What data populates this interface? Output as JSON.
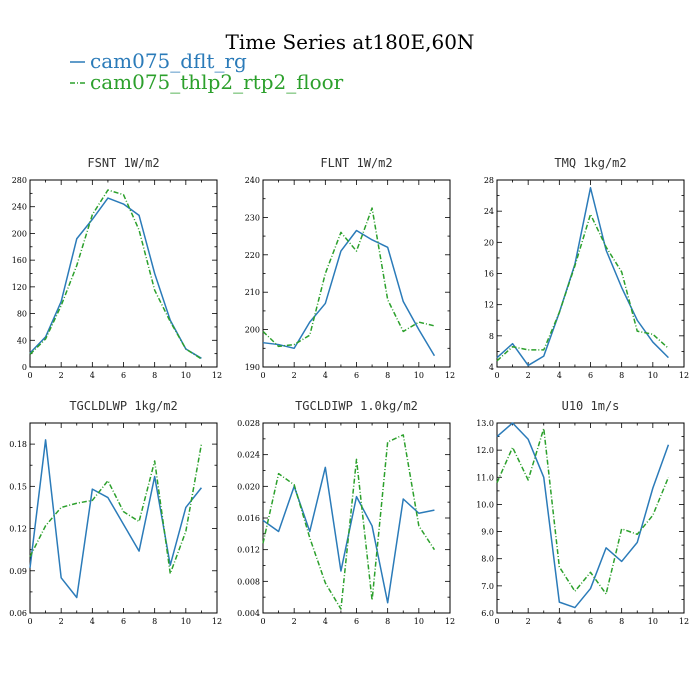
{
  "figure": {
    "title": "Time Series at180E,60N",
    "legend": [
      {
        "label": "cam075_dflt_rg",
        "color": "#2b7bb9",
        "dash": "solid"
      },
      {
        "label": "cam075_thlp2_rtp2_floor",
        "color": "#2ca02c",
        "dash": "dashdot"
      }
    ]
  },
  "chart_data": [
    {
      "type": "line",
      "title": "FSNT  1W/m2",
      "x": [
        0,
        1,
        2,
        3,
        4,
        5,
        6,
        7,
        8,
        9,
        10,
        11
      ],
      "xlim": [
        0,
        12
      ],
      "xticks": [
        0,
        2,
        4,
        6,
        8,
        10,
        12
      ],
      "ylim": [
        0,
        280
      ],
      "yticks": [
        0,
        40,
        80,
        120,
        160,
        200,
        240,
        280
      ],
      "series": [
        {
          "name": "cam075_dflt_rg",
          "values": [
            21,
            45,
            98,
            192,
            221,
            253,
            244,
            227,
            140,
            70,
            27,
            13
          ]
        },
        {
          "name": "cam075_thlp2_rtp2_floor",
          "values": [
            19,
            42,
            92,
            152,
            228,
            265,
            258,
            205,
            115,
            68,
            27,
            12
          ]
        }
      ]
    },
    {
      "type": "line",
      "title": "FLNT  1W/m2",
      "x": [
        0,
        1,
        2,
        3,
        4,
        5,
        6,
        7,
        8,
        9,
        10,
        11
      ],
      "xlim": [
        0,
        12
      ],
      "xticks": [
        0,
        2,
        4,
        6,
        8,
        10,
        12
      ],
      "ylim": [
        190,
        240
      ],
      "yticks": [
        190,
        200,
        210,
        220,
        230,
        240
      ],
      "series": [
        {
          "name": "cam075_dflt_rg",
          "values": [
            196.5,
            196,
            195,
            202,
            207,
            221,
            226.5,
            224,
            222,
            207.5,
            200,
            193
          ]
        },
        {
          "name": "cam075_thlp2_rtp2_floor",
          "values": [
            199.5,
            195.5,
            196,
            198.5,
            215,
            226,
            221,
            232.5,
            208,
            199.5,
            202,
            201
          ]
        }
      ]
    },
    {
      "type": "line",
      "title": "TMQ  1kg/m2",
      "x": [
        0,
        1,
        2,
        3,
        4,
        5,
        6,
        7,
        8,
        9,
        10,
        11
      ],
      "xlim": [
        0,
        12
      ],
      "xticks": [
        0,
        2,
        4,
        6,
        8,
        10,
        12
      ],
      "ylim": [
        4,
        28
      ],
      "yticks": [
        4,
        8,
        12,
        16,
        20,
        24,
        28
      ],
      "series": [
        {
          "name": "cam075_dflt_rg",
          "values": [
            5.2,
            7.0,
            4.2,
            5.4,
            11.0,
            17.2,
            27.0,
            19.0,
            14.2,
            10.0,
            7.2,
            5.2
          ]
        },
        {
          "name": "cam075_thlp2_rtp2_floor",
          "values": [
            4.8,
            6.6,
            6.2,
            6.2,
            11.0,
            17.0,
            23.6,
            19.4,
            16.2,
            8.6,
            8.2,
            6.4
          ]
        }
      ]
    },
    {
      "type": "line",
      "title": "TGCLDLWP  1kg/m2",
      "x": [
        0,
        1,
        2,
        3,
        4,
        5,
        6,
        7,
        8,
        9,
        10,
        11
      ],
      "xlim": [
        0,
        12
      ],
      "xticks": [
        0,
        2,
        4,
        6,
        8,
        10,
        12
      ],
      "ylim": [
        0.06,
        0.195
      ],
      "yticks": [
        0.06,
        0.09,
        0.12,
        0.15,
        0.18
      ],
      "ytick_labels": [
        "0.06",
        "0.09",
        "0.12",
        "0.15",
        "0.18"
      ],
      "series": [
        {
          "name": "cam075_dflt_rg",
          "values": [
            0.092,
            0.183,
            0.085,
            0.071,
            0.148,
            0.142,
            0.123,
            0.104,
            0.157,
            0.094,
            0.135,
            0.149
          ]
        },
        {
          "name": "cam075_thlp2_rtp2_floor",
          "values": [
            0.1,
            0.122,
            0.135,
            0.138,
            0.14,
            0.154,
            0.132,
            0.125,
            0.168,
            0.088,
            0.118,
            0.18
          ]
        }
      ]
    },
    {
      "type": "line",
      "title": "TGCLDIWP  1.0kg/m2",
      "x": [
        0,
        1,
        2,
        3,
        4,
        5,
        6,
        7,
        8,
        9,
        10,
        11
      ],
      "xlim": [
        0,
        12
      ],
      "xticks": [
        0,
        2,
        4,
        6,
        8,
        10,
        12
      ],
      "ylim": [
        0.004,
        0.028
      ],
      "yticks": [
        0.004,
        0.008,
        0.012,
        0.016,
        0.02,
        0.024,
        0.028
      ],
      "ytick_labels": [
        "0.004",
        "0.008",
        "0.012",
        "0.016",
        "0.020",
        "0.024",
        "0.028"
      ],
      "series": [
        {
          "name": "cam075_dflt_rg",
          "values": [
            0.0157,
            0.0143,
            0.02,
            0.0143,
            0.0224,
            0.0093,
            0.0187,
            0.015,
            0.0053,
            0.0184,
            0.0166,
            0.017
          ]
        },
        {
          "name": "cam075_thlp2_rtp2_floor",
          "values": [
            0.0128,
            0.0216,
            0.0202,
            0.0135,
            0.0078,
            0.0045,
            0.0234,
            0.0056,
            0.0256,
            0.0265,
            0.015,
            0.012
          ]
        }
      ]
    },
    {
      "type": "line",
      "title": "U10  1m/s",
      "x": [
        0,
        1,
        2,
        3,
        4,
        5,
        6,
        7,
        8,
        9,
        10,
        11
      ],
      "xlim": [
        0,
        12
      ],
      "xticks": [
        0,
        2,
        4,
        6,
        8,
        10,
        12
      ],
      "ylim": [
        6.0,
        13.0
      ],
      "yticks": [
        6.0,
        7.0,
        8.0,
        9.0,
        10.0,
        11.0,
        12.0,
        13.0
      ],
      "ytick_labels": [
        "6.0",
        "7.0",
        "8.0",
        "9.0",
        "10.0",
        "11.0",
        "12.0",
        "13.0"
      ],
      "series": [
        {
          "name": "cam075_dflt_rg",
          "values": [
            12.5,
            13.0,
            12.4,
            11.0,
            6.4,
            6.2,
            6.9,
            8.4,
            7.9,
            8.6,
            10.6,
            12.2
          ]
        },
        {
          "name": "cam075_thlp2_rtp2_floor",
          "values": [
            10.8,
            12.1,
            10.9,
            12.8,
            7.7,
            6.8,
            7.5,
            6.7,
            9.1,
            8.9,
            9.6,
            11.0
          ]
        }
      ]
    }
  ]
}
